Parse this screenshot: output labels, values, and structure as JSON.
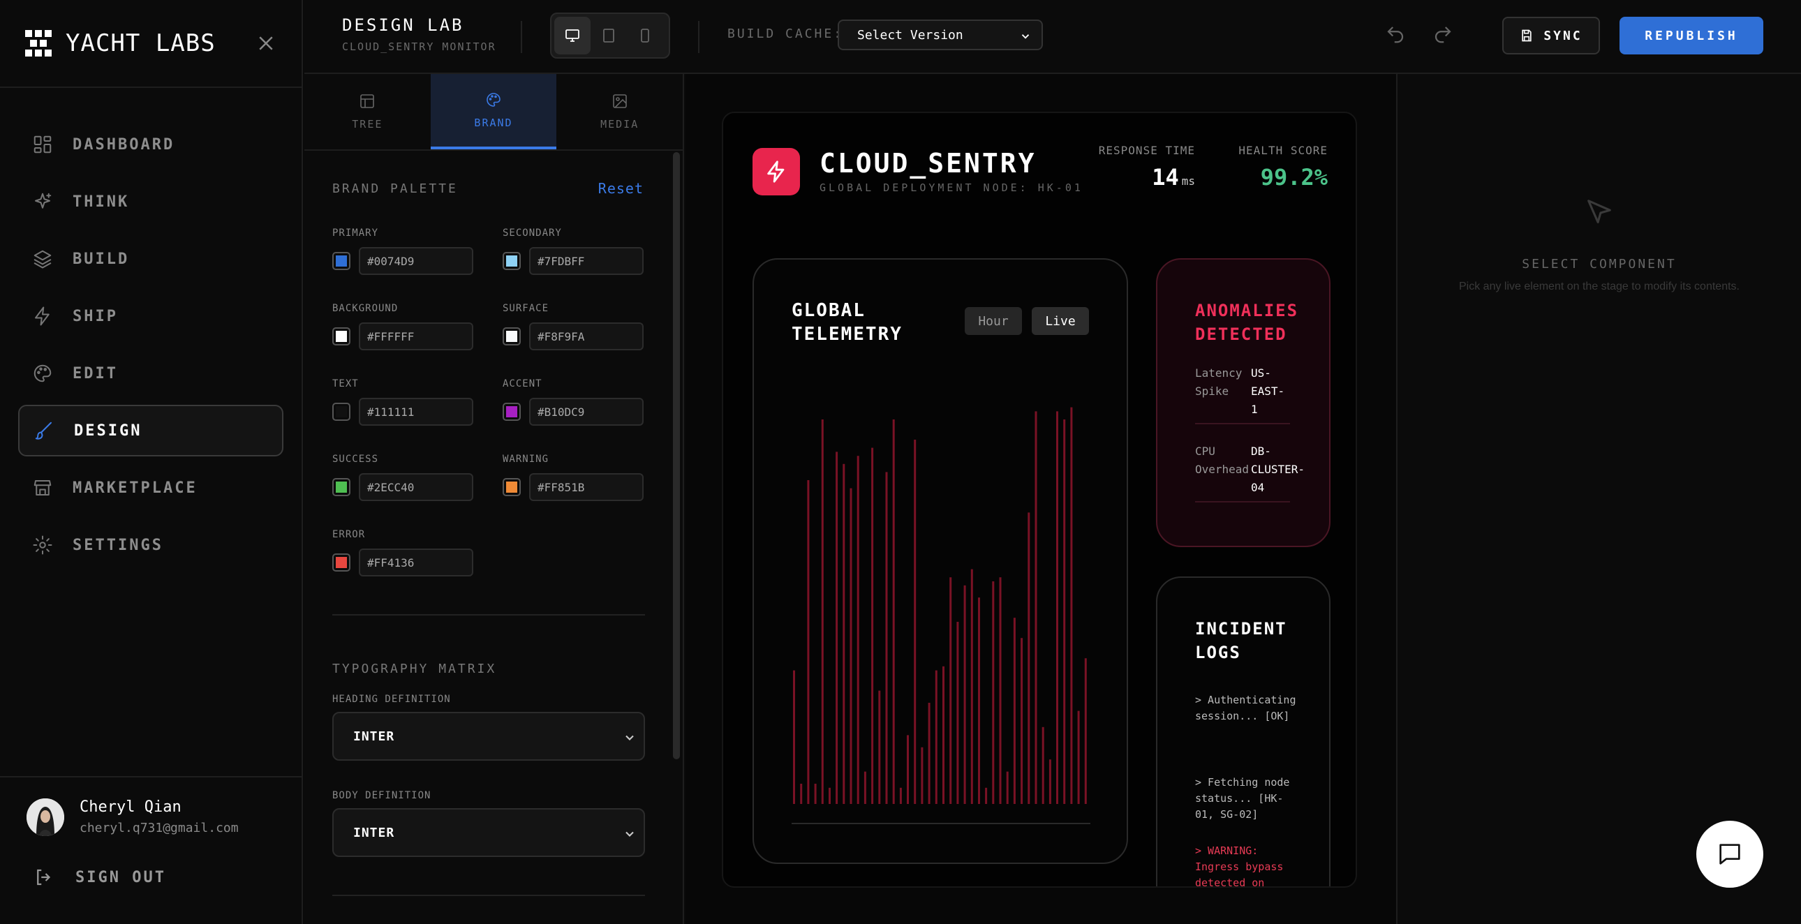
{
  "sidebar": {
    "brand": "YACHT LABS",
    "nav": [
      {
        "label": "DASHBOARD",
        "icon": "dashboard-icon",
        "active": false
      },
      {
        "label": "THINK",
        "icon": "sparkles-icon",
        "active": false
      },
      {
        "label": "BUILD",
        "icon": "layers-icon",
        "active": false
      },
      {
        "label": "SHIP",
        "icon": "lightning-icon",
        "active": false
      },
      {
        "label": "EDIT",
        "icon": "palette-icon",
        "active": false
      },
      {
        "label": "DESIGN",
        "icon": "brush-icon",
        "active": true
      },
      {
        "label": "MARKETPLACE",
        "icon": "store-icon",
        "active": false
      },
      {
        "label": "SETTINGS",
        "icon": "gear-icon",
        "active": false
      }
    ],
    "user": {
      "name": "Cheryl Qian",
      "email": "cheryl.q731@gmail.com"
    },
    "signout": "SIGN OUT"
  },
  "topbar": {
    "title": "DESIGN LAB",
    "subtitle": "CLOUD_SENTRY MONITOR",
    "cache_label": "BUILD CACHE:",
    "cache_value": "Select Version",
    "sync": "SYNC",
    "republish": "REPUBLISH"
  },
  "panel": {
    "tabs": [
      {
        "label": "TREE",
        "icon": "layout-icon",
        "active": false
      },
      {
        "label": "BRAND",
        "icon": "palette-icon",
        "active": true
      },
      {
        "label": "MEDIA",
        "icon": "image-icon",
        "active": false
      }
    ],
    "palette_title": "BRAND PALETTE",
    "reset": "Reset",
    "colors": [
      {
        "label": "PRIMARY",
        "hex": "#0074D9",
        "swatch": "#2f6fd6"
      },
      {
        "label": "SECONDARY",
        "hex": "#7FDBFF",
        "swatch": "#8fd2f5"
      },
      {
        "label": "BACKGROUND",
        "hex": "#FFFFFF",
        "swatch": "#ffffff"
      },
      {
        "label": "SURFACE",
        "hex": "#F8F9FA",
        "swatch": "#f8f9fa"
      },
      {
        "label": "TEXT",
        "hex": "#111111",
        "swatch": "#111111"
      },
      {
        "label": "ACCENT",
        "hex": "#B10DC9",
        "swatch": "#a720c2"
      },
      {
        "label": "SUCCESS",
        "hex": "#2ECC40",
        "swatch": "#4fbf52"
      },
      {
        "label": "WARNING",
        "hex": "#FF851B",
        "swatch": "#ef8a36"
      },
      {
        "label": "ERROR",
        "hex": "#FF4136",
        "swatch": "#e8473f"
      }
    ],
    "typography_title": "TYPOGRAPHY MATRIX",
    "heading_label": "HEADING DEFINITION",
    "heading_value": "INTER",
    "body_label": "BODY DEFINITION",
    "body_value": "INTER"
  },
  "stage": {
    "app_title": "CLOUD_SENTRY",
    "app_subtitle": "GLOBAL DEPLOYMENT NODE: HK-01",
    "response_label": "RESPONSE TIME",
    "response_value": "14",
    "response_unit": "ms",
    "health_label": "HEALTH SCORE",
    "health_value": "99.2%",
    "telemetry_title": "GLOBAL TELEMETRY",
    "pill_hour": "Hour",
    "pill_live": "Live",
    "telemetry_values": [
      0.33,
      0.05,
      0.8,
      0.05,
      0.95,
      0.04,
      0.87,
      0.84,
      0.78,
      0.86,
      0.08,
      0.88,
      0.28,
      0.82,
      0.95,
      0.04,
      0.17,
      0.9,
      0.14,
      0.25,
      0.33,
      0.34,
      0.56,
      0.45,
      0.54,
      0.58,
      0.51,
      0.04,
      0.55,
      0.56,
      0.08,
      0.46,
      0.41,
      0.72,
      0.97,
      0.19,
      0.11,
      0.97,
      0.95,
      0.98,
      0.23,
      0.36
    ],
    "anomalies_title": "ANOMALIES DETECTED",
    "anomalies": [
      {
        "key": "Latency Spike",
        "value": "US-EAST-1"
      },
      {
        "key": "CPU Overhead",
        "value": "DB-CLUSTER-04"
      }
    ],
    "logs_title": "INCIDENT LOGS",
    "logs": [
      {
        "text": "> Authenticating session... [OK]",
        "warn": false
      },
      {
        "text": "> Fetching node status... [HK-01, SG-02]",
        "warn": false
      },
      {
        "text": "> WARNING: Ingress bypass detected on",
        "warn": true
      }
    ]
  },
  "inspector": {
    "title": "SELECT COMPONENT",
    "subtitle": "Pick any live element on the stage to modify its contents."
  },
  "colors": {
    "accent": "#2f6fd6",
    "danger": "#e8254d",
    "success": "#4cc38a",
    "bar": "#7a1225"
  }
}
